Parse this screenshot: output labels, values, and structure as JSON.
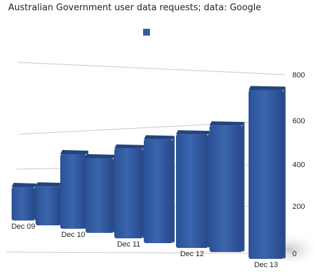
{
  "chart_data": {
    "type": "bar",
    "title": "Australian Government user data requests; data: Google",
    "categories": [
      "Dec 09",
      "",
      "Dec 10",
      "",
      "Dec 11",
      "",
      "Dec 12",
      "",
      "Dec 13"
    ],
    "series": [
      {
        "name": "",
        "values": [
          155,
          180,
          345,
          345,
          415,
          480,
          525,
          585,
          780
        ]
      }
    ],
    "ylim": [
      0,
      800
    ],
    "yticks": [
      0,
      200,
      400,
      600,
      800
    ],
    "grid": true,
    "legend_position": "top-center",
    "style": "3d-perspective",
    "colors": {
      "bar_front": "#3a65ad",
      "bar_top": "#23457e",
      "bar_side": "#2a4f8f",
      "legend": "#3560a8"
    }
  }
}
